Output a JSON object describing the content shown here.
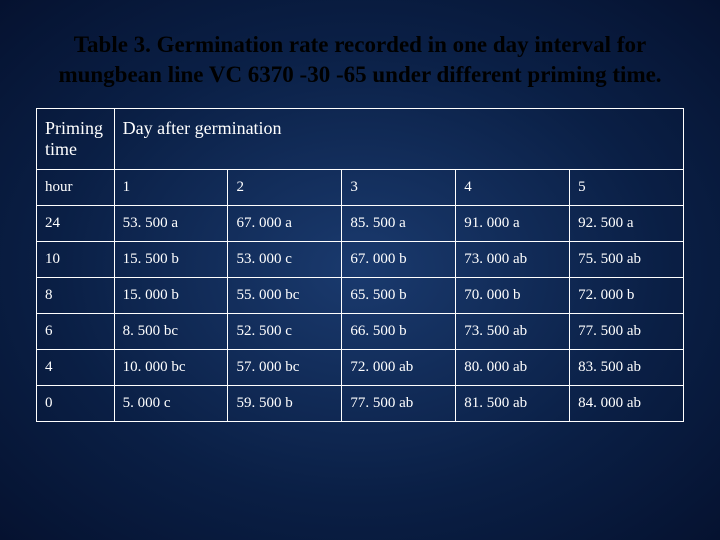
{
  "title": "Table 3. Germination rate recorded in one day interval for mungbean line VC 6370 -30 -65 under different priming time.",
  "table": {
    "type": "table",
    "background": "transparent",
    "border_color": "#ffffff",
    "text_color": "#ffffff",
    "title_color": "#000000",
    "title_fontsize": 23,
    "header_fontsize": 18,
    "cell_fontsize": 15,
    "col_widths_pct": [
      12,
      17.6,
      17.6,
      17.6,
      17.6,
      17.6
    ],
    "header": {
      "priming_label": "Priming time",
      "day_after_label": "Day after germination"
    },
    "subheader": [
      "hour",
      "1",
      "2",
      "3",
      "4",
      "5"
    ],
    "rows": [
      [
        "24",
        "53. 500 a",
        "67. 000 a",
        "85. 500 a",
        "91. 000 a",
        "92. 500 a"
      ],
      [
        "10",
        "15. 500 b",
        "53. 000 c",
        "67. 000 b",
        "73. 000 ab",
        "75. 500 ab"
      ],
      [
        "8",
        "15. 000 b",
        "55. 000 bc",
        "65. 500 b",
        "70. 000 b",
        "72. 000 b"
      ],
      [
        "6",
        "8. 500 bc",
        "52. 500 c",
        "66. 500 b",
        "73. 500 ab",
        "77. 500 ab"
      ],
      [
        "4",
        "10. 000 bc",
        "57. 000 bc",
        "72. 000 ab",
        "80. 000 ab",
        "83. 500 ab"
      ],
      [
        "0",
        "5. 000 c",
        "59. 500 b",
        "77. 500 ab",
        "81. 500 ab",
        "84. 000 ab"
      ]
    ]
  }
}
